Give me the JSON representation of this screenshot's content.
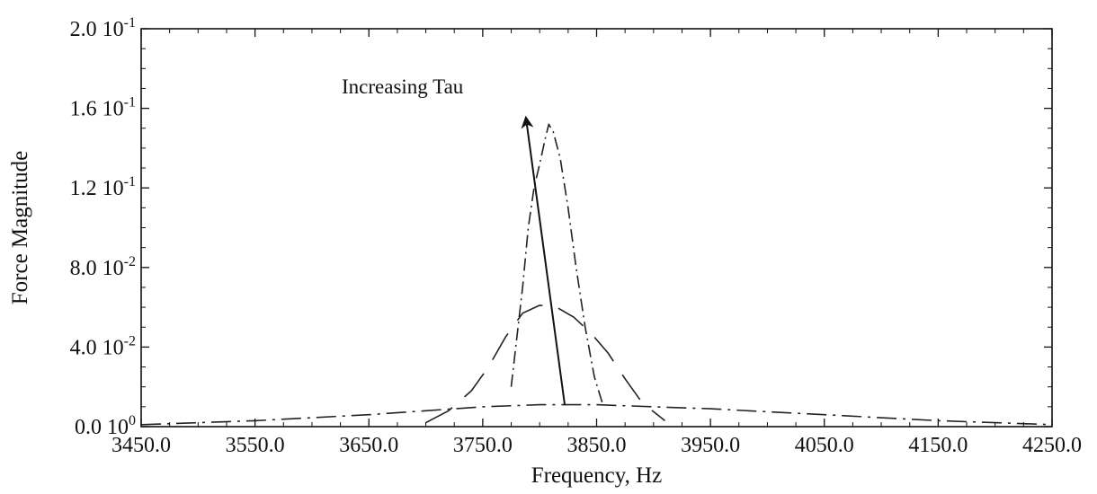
{
  "chart_data": {
    "type": "line",
    "title": "",
    "xlabel": "Frequency, Hz",
    "ylabel": "Force Magnitude",
    "xlim": [
      3450.0,
      4250.0
    ],
    "ylim": [
      0.0,
      0.2
    ],
    "x_ticks": [
      {
        "value": 3450.0,
        "label": "3450.0"
      },
      {
        "value": 3550.0,
        "label": "3550.0"
      },
      {
        "value": 3650.0,
        "label": "3650.0"
      },
      {
        "value": 3750.0,
        "label": "3750.0"
      },
      {
        "value": 3850.0,
        "label": "3850.0"
      },
      {
        "value": 3950.0,
        "label": "3950.0"
      },
      {
        "value": 4050.0,
        "label": "4050.0"
      },
      {
        "value": 4150.0,
        "label": "4150.0"
      },
      {
        "value": 4250.0,
        "label": "4250.0"
      }
    ],
    "y_ticks": [
      {
        "value": 0.0,
        "mantissa": "0.0 10",
        "exponent": "0"
      },
      {
        "value": 0.04,
        "mantissa": "4.0 10",
        "exponent": "-2"
      },
      {
        "value": 0.08,
        "mantissa": "8.0 10",
        "exponent": "-2"
      },
      {
        "value": 0.12,
        "mantissa": "1.2 10",
        "exponent": "-1"
      },
      {
        "value": 0.16,
        "mantissa": "1.6 10",
        "exponent": "-1"
      },
      {
        "value": 0.2,
        "mantissa": "2.0 10",
        "exponent": "-1"
      }
    ],
    "grid": false,
    "series": [
      {
        "style": "dash-dot",
        "x": [
          3775,
          3785,
          3790,
          3795,
          3800,
          3805,
          3808,
          3812,
          3818,
          3825,
          3832,
          3840,
          3848,
          3855
        ],
        "y": [
          0.02,
          0.07,
          0.1,
          0.12,
          0.132,
          0.145,
          0.152,
          0.148,
          0.135,
          0.11,
          0.08,
          0.05,
          0.025,
          0.012
        ]
      },
      {
        "style": "long-dash",
        "x": [
          3700,
          3720,
          3740,
          3755,
          3770,
          3785,
          3800,
          3815,
          3830,
          3845,
          3860,
          3875,
          3890,
          3910
        ],
        "y": [
          0.002,
          0.008,
          0.018,
          0.03,
          0.045,
          0.057,
          0.061,
          0.06,
          0.055,
          0.047,
          0.037,
          0.024,
          0.012,
          0.003
        ]
      },
      {
        "style": "dot-dash",
        "x": [
          3450,
          3550,
          3650,
          3700,
          3750,
          3800,
          3850,
          3900,
          3950,
          4050,
          4150,
          4250
        ],
        "y": [
          0.001,
          0.003,
          0.006,
          0.008,
          0.01,
          0.011,
          0.011,
          0.01,
          0.009,
          0.006,
          0.003,
          0.001
        ]
      }
    ],
    "annotations": [
      {
        "text": "Increasing Tau",
        "arrow_from": [
          3822,
          0.011
        ],
        "arrow_to": [
          3788,
          0.155
        ]
      }
    ]
  }
}
